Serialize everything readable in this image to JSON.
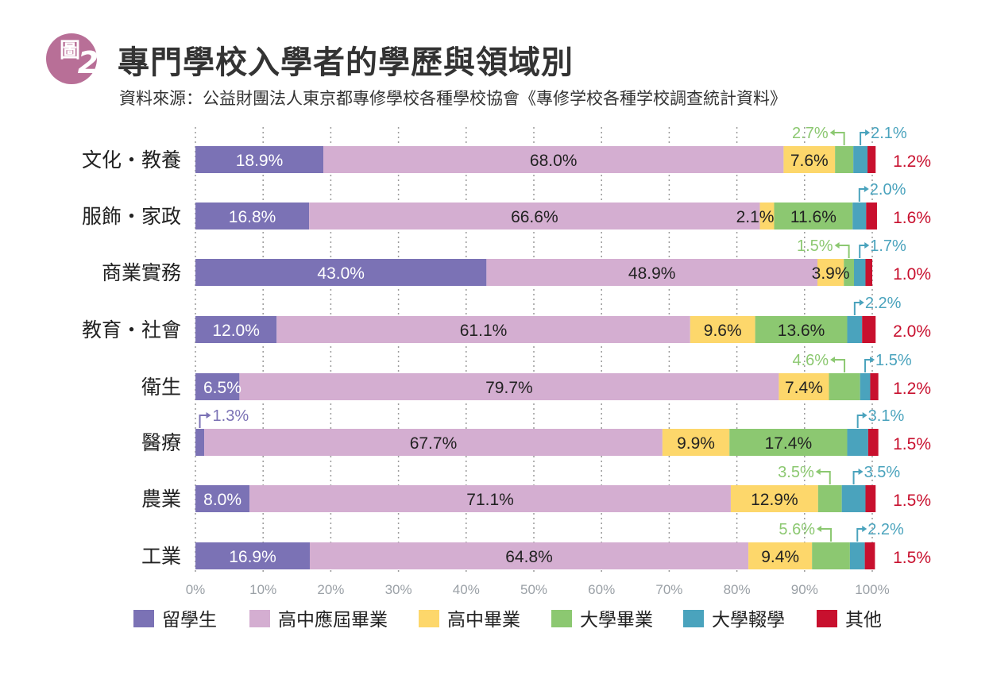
{
  "figure": {
    "badge_label": "圖",
    "badge_number": "2",
    "title": "專門學校入學者的學歷與領域別",
    "source": "資料來源：公益財團法人東京都專修學校各種學校協會《專修学校各種学校調查統計資料》"
  },
  "chart_data": {
    "type": "bar",
    "orientation": "horizontal",
    "stacked": true,
    "percent_stacked": true,
    "categories": [
      "文化・教養",
      "服飾・家政",
      "商業實務",
      "教育・社會",
      "衛生",
      "醫療",
      "農業",
      "工業"
    ],
    "series": [
      {
        "name": "留學生",
        "color": "#7b72b5",
        "values": [
          18.9,
          16.8,
          43.0,
          12.0,
          6.5,
          1.3,
          8.0,
          16.9
        ]
      },
      {
        "name": "高中應屆畢業",
        "color": "#d4aed1",
        "values": [
          68.0,
          66.6,
          48.9,
          61.1,
          79.7,
          67.7,
          71.1,
          64.8
        ]
      },
      {
        "name": "高中畢業",
        "color": "#fdd76b",
        "values": [
          7.6,
          2.1,
          3.9,
          9.6,
          7.4,
          9.9,
          12.9,
          9.4
        ]
      },
      {
        "name": "大學畢業",
        "color": "#8cc871",
        "values": [
          2.7,
          11.6,
          1.5,
          13.6,
          4.6,
          17.4,
          3.5,
          5.6
        ]
      },
      {
        "name": "大學輟學",
        "color": "#4aa3bd",
        "values": [
          2.1,
          2.0,
          1.7,
          2.2,
          1.5,
          3.1,
          3.5,
          2.2
        ]
      },
      {
        "name": "其他",
        "color": "#c8102e",
        "values": [
          1.2,
          1.6,
          1.0,
          2.0,
          1.2,
          1.5,
          1.5,
          1.5
        ]
      }
    ],
    "labels": [
      [
        "18.9%",
        "68.0%",
        "7.6%",
        "2.7%",
        "2.1%",
        "1.2%"
      ],
      [
        "16.8%",
        "66.6%",
        "2.1%",
        "11.6%",
        "2.0%",
        "1.6%"
      ],
      [
        "43.0%",
        "48.9%",
        "3.9%",
        "1.5%",
        "1.7%",
        "1.0%"
      ],
      [
        "12.0%",
        "61.1%",
        "9.6%",
        "13.6%",
        "2.2%",
        "2.0%"
      ],
      [
        "6.5%",
        "79.7%",
        "7.4%",
        "4.6%",
        "1.5%",
        "1.2%"
      ],
      [
        "1.3%",
        "67.7%",
        "9.9%",
        "17.4%",
        "3.1%",
        "1.5%"
      ],
      [
        "8.0%",
        "71.1%",
        "12.9%",
        "3.5%",
        "3.5%",
        "1.5%"
      ],
      [
        "16.9%",
        "64.8%",
        "9.4%",
        "5.6%",
        "2.2%",
        "1.5%"
      ]
    ],
    "x_ticks": [
      "0%",
      "10%",
      "20%",
      "30%",
      "40%",
      "50%",
      "60%",
      "70%",
      "80%",
      "90%",
      "100%"
    ],
    "xlim": [
      0,
      100
    ],
    "grid": true,
    "legend_position": "bottom"
  }
}
